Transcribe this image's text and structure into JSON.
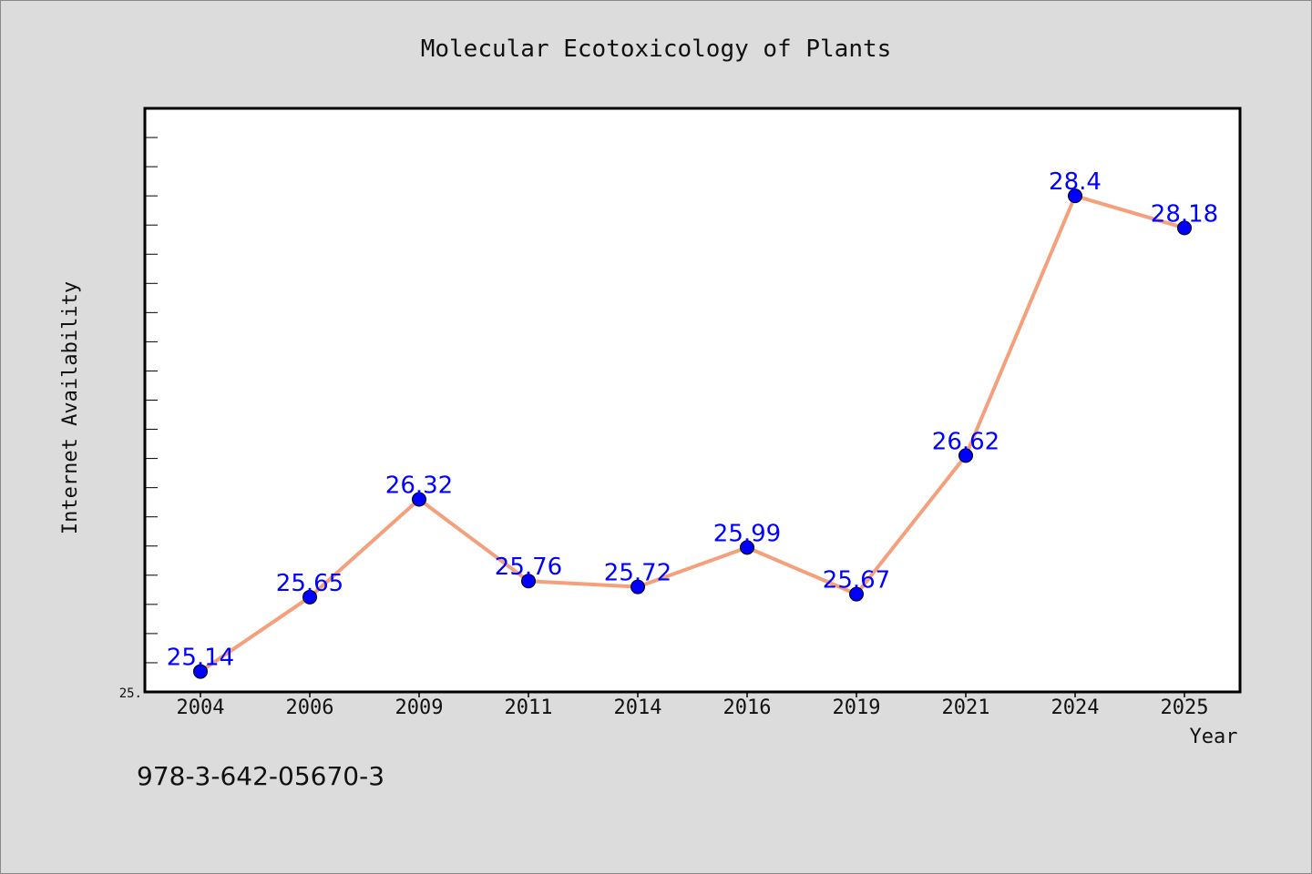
{
  "chart_data": {
    "type": "line",
    "title": "Molecular Ecotoxicology of Plants",
    "xlabel": "Year",
    "ylabel": "Internet Availability",
    "categories": [
      "2004",
      "2006",
      "2009",
      "2011",
      "2014",
      "2016",
      "2019",
      "2021",
      "2024",
      "2025"
    ],
    "values": [
      25.14,
      25.65,
      26.32,
      25.76,
      25.72,
      25.99,
      25.67,
      26.62,
      28.4,
      28.18
    ],
    "data_labels": [
      "25.14",
      "25.65",
      "26.32",
      "25.76",
      "25.72",
      "25.99",
      "25.67",
      "26.62",
      "28.4",
      "28.18"
    ],
    "ylim": [
      25.0,
      29.0
    ],
    "ytick_labels": [
      "25."
    ],
    "grid": false,
    "line_color": "#f4a07c",
    "marker_color": "#0000ff",
    "label_color": "#0000ff"
  },
  "footnote": "978-3-642-05670-3"
}
